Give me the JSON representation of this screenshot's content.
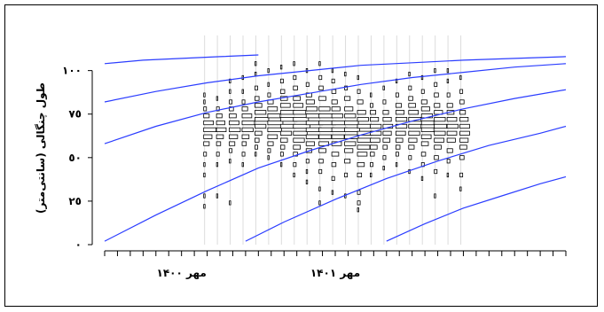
{
  "colors": {
    "curve": "#2b3dff",
    "histogram_stroke": "#000000",
    "grid": "#dcdcdc",
    "axis": "#000000"
  },
  "chart_data": {
    "type": "line",
    "title": "",
    "ylabel": "طول چنگالی (سانتی‌متر)",
    "xlabel": "",
    "ylim": [
      0,
      110
    ],
    "y_ticks": [
      0,
      25,
      50,
      75,
      100
    ],
    "y_tick_labels": [
      "٠",
      "٢٥",
      "٥٠",
      "٧٥",
      "١٠٠"
    ],
    "x_date_labels": [
      {
        "label": "مهر ١۴٠٠",
        "month": 6
      },
      {
        "label": "مهر ١۴٠١",
        "month": 18
      }
    ],
    "x_range_months": [
      0,
      36
    ],
    "grid": "vertical-sample-dates",
    "series": [
      {
        "x": [
          0,
          3,
          6,
          9,
          12
        ],
        "values": [
          104,
          106,
          107,
          108,
          109
        ]
      },
      {
        "x": [
          0,
          4,
          8,
          12,
          16,
          20,
          24,
          28,
          32,
          36
        ],
        "values": [
          82,
          88,
          93,
          97,
          100,
          103,
          104.5,
          106,
          107,
          108
        ]
      },
      {
        "x": [
          0,
          4,
          8,
          12,
          16,
          20,
          24,
          28,
          32,
          36
        ],
        "values": [
          58,
          68,
          76,
          82,
          87,
          92,
          96,
          99,
          102,
          104
        ]
      },
      {
        "x": [
          0,
          4,
          8,
          12,
          16,
          20,
          24,
          28,
          32,
          36
        ],
        "values": [
          2,
          17,
          31,
          44,
          54,
          63,
          71,
          78,
          84,
          89
        ]
      },
      {
        "x": [
          11,
          14,
          18,
          22,
          26,
          30,
          34,
          36
        ],
        "values": [
          2,
          13,
          26,
          38,
          48,
          57,
          64,
          68
        ]
      },
      {
        "x": [
          22,
          25,
          28,
          31,
          34,
          36
        ],
        "values": [
          2,
          12,
          21,
          28,
          35,
          39
        ]
      }
    ],
    "histograms": [
      {
        "x": 7.8,
        "bins": [
          [
            22,
            1
          ],
          [
            28,
            1
          ],
          [
            40,
            1
          ],
          [
            46,
            1
          ],
          [
            52,
            2
          ],
          [
            58,
            4
          ],
          [
            62,
            6
          ],
          [
            66,
            9
          ],
          [
            70,
            7
          ],
          [
            74,
            4
          ],
          [
            78,
            2
          ],
          [
            82,
            1
          ],
          [
            86,
            1
          ]
        ]
      },
      {
        "x": 8.8,
        "bins": [
          [
            28,
            1
          ],
          [
            46,
            1
          ],
          [
            52,
            2
          ],
          [
            58,
            3
          ],
          [
            62,
            5
          ],
          [
            66,
            7
          ],
          [
            70,
            6
          ],
          [
            74,
            4
          ],
          [
            78,
            2
          ],
          [
            84,
            1
          ]
        ]
      },
      {
        "x": 9.8,
        "bins": [
          [
            24,
            1
          ],
          [
            48,
            1
          ],
          [
            54,
            2
          ],
          [
            58,
            4
          ],
          [
            62,
            6
          ],
          [
            66,
            8
          ],
          [
            70,
            7
          ],
          [
            74,
            5
          ],
          [
            78,
            3
          ],
          [
            82,
            2
          ],
          [
            88,
            1
          ],
          [
            94,
            1
          ]
        ]
      },
      {
        "x": 10.8,
        "bins": [
          [
            46,
            1
          ],
          [
            52,
            2
          ],
          [
            58,
            3
          ],
          [
            62,
            5
          ],
          [
            66,
            8
          ],
          [
            70,
            9
          ],
          [
            74,
            7
          ],
          [
            78,
            4
          ],
          [
            82,
            2
          ],
          [
            88,
            1
          ],
          [
            96,
            1
          ]
        ]
      },
      {
        "x": 11.8,
        "bins": [
          [
            52,
            1
          ],
          [
            56,
            2
          ],
          [
            60,
            3
          ],
          [
            64,
            5
          ],
          [
            68,
            8
          ],
          [
            72,
            10
          ],
          [
            76,
            8
          ],
          [
            80,
            5
          ],
          [
            84,
            3
          ],
          [
            90,
            2
          ],
          [
            98,
            1
          ],
          [
            104,
            1
          ]
        ]
      },
      {
        "x": 12.8,
        "bins": [
          [
            50,
            1
          ],
          [
            54,
            2
          ],
          [
            58,
            4
          ],
          [
            62,
            7
          ],
          [
            66,
            10
          ],
          [
            70,
            11
          ],
          [
            74,
            9
          ],
          [
            78,
            7
          ],
          [
            82,
            4
          ],
          [
            86,
            2
          ],
          [
            92,
            1
          ],
          [
            100,
            1
          ]
        ]
      },
      {
        "x": 13.8,
        "bins": [
          [
            46,
            1
          ],
          [
            52,
            2
          ],
          [
            56,
            3
          ],
          [
            60,
            5
          ],
          [
            64,
            8
          ],
          [
            68,
            11
          ],
          [
            72,
            12
          ],
          [
            76,
            10
          ],
          [
            80,
            7
          ],
          [
            84,
            5
          ],
          [
            88,
            3
          ],
          [
            94,
            2
          ],
          [
            102,
            1
          ]
        ]
      },
      {
        "x": 14.8,
        "bins": [
          [
            40,
            1
          ],
          [
            46,
            2
          ],
          [
            52,
            3
          ],
          [
            56,
            5
          ],
          [
            60,
            8
          ],
          [
            64,
            10
          ],
          [
            68,
            12
          ],
          [
            72,
            11
          ],
          [
            76,
            9
          ],
          [
            80,
            7
          ],
          [
            84,
            5
          ],
          [
            90,
            3
          ],
          [
            96,
            2
          ],
          [
            104,
            1
          ]
        ]
      },
      {
        "x": 15.8,
        "bins": [
          [
            36,
            1
          ],
          [
            42,
            1
          ],
          [
            48,
            2
          ],
          [
            54,
            4
          ],
          [
            58,
            6
          ],
          [
            62,
            9
          ],
          [
            66,
            11
          ],
          [
            70,
            12
          ],
          [
            74,
            10
          ],
          [
            78,
            8
          ],
          [
            82,
            6
          ],
          [
            86,
            4
          ],
          [
            92,
            2
          ],
          [
            100,
            1
          ]
        ]
      },
      {
        "x": 16.8,
        "bins": [
          [
            24,
            1
          ],
          [
            32,
            1
          ],
          [
            42,
            2
          ],
          [
            48,
            3
          ],
          [
            54,
            5
          ],
          [
            58,
            7
          ],
          [
            62,
            9
          ],
          [
            66,
            11
          ],
          [
            70,
            12
          ],
          [
            74,
            10
          ],
          [
            78,
            8
          ],
          [
            84,
            5
          ],
          [
            90,
            3
          ],
          [
            96,
            2
          ],
          [
            104,
            1
          ]
        ]
      },
      {
        "x": 17.8,
        "bins": [
          [
            30,
            1
          ],
          [
            38,
            2
          ],
          [
            46,
            3
          ],
          [
            52,
            5
          ],
          [
            58,
            7
          ],
          [
            62,
            9
          ],
          [
            66,
            11
          ],
          [
            70,
            10
          ],
          [
            74,
            8
          ],
          [
            78,
            6
          ],
          [
            82,
            4
          ],
          [
            88,
            3
          ],
          [
            94,
            2
          ],
          [
            100,
            1
          ]
        ]
      },
      {
        "x": 18.8,
        "bins": [
          [
            28,
            1
          ],
          [
            40,
            2
          ],
          [
            48,
            4
          ],
          [
            54,
            6
          ],
          [
            58,
            8
          ],
          [
            62,
            10
          ],
          [
            66,
            11
          ],
          [
            70,
            10
          ],
          [
            74,
            8
          ],
          [
            78,
            6
          ],
          [
            84,
            4
          ],
          [
            90,
            2
          ],
          [
            98,
            1
          ]
        ]
      },
      {
        "x": 19.8,
        "bins": [
          [
            20,
            1
          ],
          [
            24,
            2
          ],
          [
            30,
            2
          ],
          [
            40,
            3
          ],
          [
            46,
            5
          ],
          [
            52,
            7
          ],
          [
            56,
            9
          ],
          [
            60,
            10
          ],
          [
            64,
            11
          ],
          [
            68,
            10
          ],
          [
            72,
            8
          ],
          [
            76,
            6
          ],
          [
            82,
            4
          ],
          [
            88,
            2
          ],
          [
            96,
            1
          ]
        ]
      },
      {
        "x": 20.8,
        "bins": [
          [
            40,
            1
          ],
          [
            46,
            2
          ],
          [
            52,
            3
          ],
          [
            56,
            5
          ],
          [
            60,
            7
          ],
          [
            64,
            8
          ],
          [
            68,
            8
          ],
          [
            72,
            6
          ],
          [
            76,
            4
          ],
          [
            80,
            2
          ],
          [
            86,
            1
          ]
        ]
      },
      {
        "x": 21.8,
        "bins": [
          [
            44,
            1
          ],
          [
            50,
            2
          ],
          [
            56,
            3
          ],
          [
            60,
            5
          ],
          [
            64,
            6
          ],
          [
            68,
            7
          ],
          [
            72,
            6
          ],
          [
            76,
            4
          ],
          [
            82,
            2
          ],
          [
            90,
            1
          ]
        ]
      },
      {
        "x": 22.8,
        "bins": [
          [
            46,
            1
          ],
          [
            52,
            2
          ],
          [
            56,
            3
          ],
          [
            60,
            5
          ],
          [
            64,
            7
          ],
          [
            68,
            8
          ],
          [
            72,
            8
          ],
          [
            76,
            6
          ],
          [
            80,
            4
          ],
          [
            86,
            2
          ],
          [
            94,
            1
          ]
        ]
      },
      {
        "x": 23.8,
        "bins": [
          [
            42,
            1
          ],
          [
            50,
            2
          ],
          [
            56,
            4
          ],
          [
            60,
            6
          ],
          [
            64,
            8
          ],
          [
            68,
            9
          ],
          [
            72,
            9
          ],
          [
            76,
            7
          ],
          [
            80,
            5
          ],
          [
            84,
            3
          ],
          [
            90,
            2
          ],
          [
            98,
            1
          ]
        ]
      },
      {
        "x": 24.8,
        "bins": [
          [
            38,
            1
          ],
          [
            46,
            2
          ],
          [
            52,
            3
          ],
          [
            58,
            5
          ],
          [
            62,
            7
          ],
          [
            66,
            9
          ],
          [
            70,
            9
          ],
          [
            74,
            8
          ],
          [
            78,
            6
          ],
          [
            82,
            4
          ],
          [
            88,
            2
          ],
          [
            96,
            1
          ]
        ]
      },
      {
        "x": 25.8,
        "bins": [
          [
            28,
            1
          ],
          [
            42,
            2
          ],
          [
            50,
            3
          ],
          [
            56,
            5
          ],
          [
            60,
            7
          ],
          [
            64,
            8
          ],
          [
            68,
            9
          ],
          [
            72,
            8
          ],
          [
            76,
            6
          ],
          [
            80,
            4
          ],
          [
            86,
            3
          ],
          [
            92,
            2
          ],
          [
            100,
            1
          ]
        ]
      },
      {
        "x": 26.8,
        "bins": [
          [
            40,
            1
          ],
          [
            48,
            2
          ],
          [
            54,
            4
          ],
          [
            60,
            6
          ],
          [
            64,
            7
          ],
          [
            68,
            8
          ],
          [
            72,
            7
          ],
          [
            76,
            5
          ],
          [
            80,
            4
          ],
          [
            86,
            2
          ],
          [
            94,
            1
          ],
          [
            100,
            1
          ]
        ]
      },
      {
        "x": 27.8,
        "bins": [
          [
            32,
            1
          ],
          [
            40,
            2
          ],
          [
            50,
            3
          ],
          [
            56,
            5
          ],
          [
            60,
            6
          ],
          [
            64,
            7
          ],
          [
            68,
            7
          ],
          [
            72,
            6
          ],
          [
            76,
            4
          ],
          [
            82,
            3
          ],
          [
            88,
            2
          ],
          [
            96,
            1
          ]
        ]
      }
    ]
  }
}
